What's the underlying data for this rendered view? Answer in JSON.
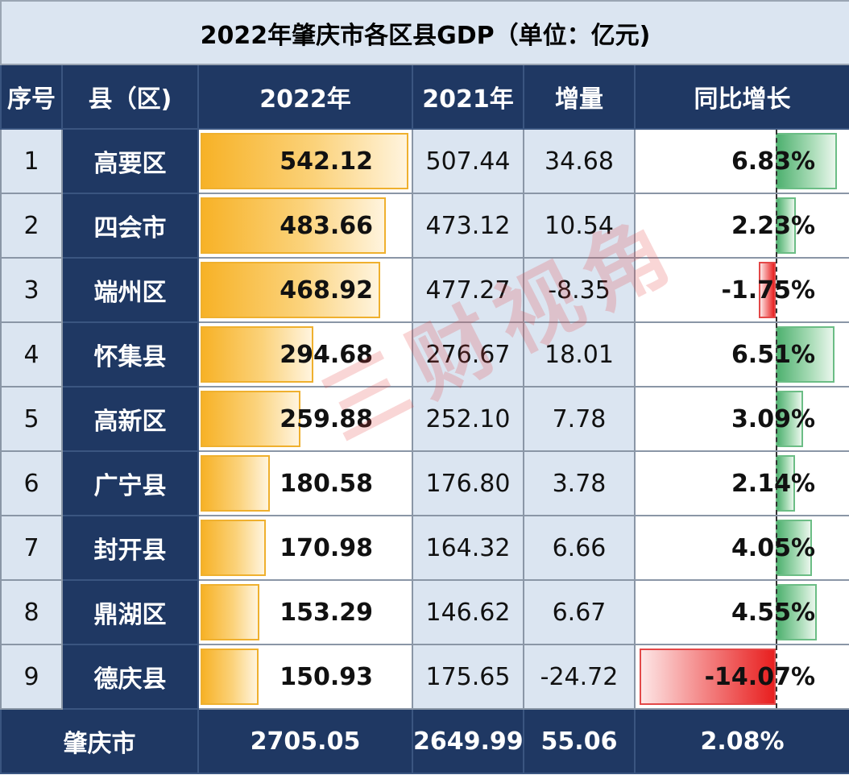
{
  "title": "2022年肇庆市各区县GDP（单位：亿元)",
  "headers": [
    "序号",
    "县（区)",
    "2022年",
    "2021年",
    "增量",
    "同比增长"
  ],
  "colors": {
    "header_bg": "#1f3863",
    "light_cell": "#dbe5f1",
    "bar_2022": "#f7b227",
    "growth_positive": "#4fb170",
    "growth_negative": "#e81f1f",
    "watermark": "#e44646"
  },
  "chart_data": {
    "type": "table",
    "title": "2022年肇庆市各区县GDP（单位：亿元)",
    "columns": [
      "序号",
      "县（区)",
      "2022年",
      "2021年",
      "增量",
      "同比增长"
    ],
    "rows": [
      {
        "rank": "1",
        "name": "高要区",
        "gdp2022": 542.12,
        "gdp2021": "507.44",
        "increase": "34.68",
        "yoy": "6.83%",
        "yoy_value": 6.83
      },
      {
        "rank": "2",
        "name": "四会市",
        "gdp2022": 483.66,
        "gdp2021": "473.12",
        "increase": "10.54",
        "yoy": "2.23%",
        "yoy_value": 2.23
      },
      {
        "rank": "3",
        "name": "端州区",
        "gdp2022": 468.92,
        "gdp2021": "477.27",
        "increase": "-8.35",
        "yoy": "-1.75%",
        "yoy_value": -1.75
      },
      {
        "rank": "4",
        "name": "怀集县",
        "gdp2022": 294.68,
        "gdp2021": "276.67",
        "increase": "18.01",
        "yoy": "6.51%",
        "yoy_value": 6.51
      },
      {
        "rank": "5",
        "name": "高新区",
        "gdp2022": 259.88,
        "gdp2021": "252.10",
        "increase": "7.78",
        "yoy": "3.09%",
        "yoy_value": 3.09
      },
      {
        "rank": "6",
        "name": "广宁县",
        "gdp2022": 180.58,
        "gdp2021": "176.80",
        "increase": "3.78",
        "yoy": "2.14%",
        "yoy_value": 2.14
      },
      {
        "rank": "7",
        "name": "封开县",
        "gdp2022": 170.98,
        "gdp2021": "164.32",
        "increase": "6.66",
        "yoy": "4.05%",
        "yoy_value": 4.05
      },
      {
        "rank": "8",
        "name": "鼎湖区",
        "gdp2022": 153.29,
        "gdp2021": "146.62",
        "increase": "6.67",
        "yoy": "4.55%",
        "yoy_value": 4.55
      },
      {
        "rank": "9",
        "name": "德庆县",
        "gdp2022": 150.93,
        "gdp2021": "175.65",
        "increase": "-24.72",
        "yoy": "-14.07%",
        "yoy_value": -14.07
      }
    ],
    "total": {
      "name": "肇庆市",
      "gdp2022": "2705.05",
      "gdp2021": "2649.99",
      "increase": "55.06",
      "yoy": "2.08%"
    }
  },
  "watermark": "三财视角"
}
